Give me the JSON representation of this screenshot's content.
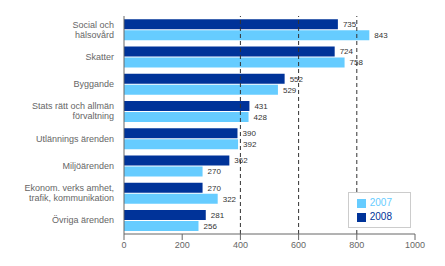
{
  "chart_data": {
    "type": "bar",
    "orientation": "horizontal",
    "categories": [
      "Övriga ärenden",
      "Ekonom. verks amhet,\ntrafik, kommunikation",
      "Miljöärenden",
      "Utlännings ärenden",
      "Stats rätt och allmän\nförvaltning",
      "Byggande",
      "Skatter",
      "Social och\nhälsovård"
    ],
    "series": [
      {
        "name": "2008",
        "color": "#003399",
        "values": [
          281,
          270,
          362,
          390,
          431,
          552,
          724,
          735
        ]
      },
      {
        "name": "2007",
        "color": "#66ccff",
        "values": [
          256,
          322,
          270,
          392,
          428,
          529,
          758,
          843
        ]
      }
    ],
    "xlim": [
      0,
      1000
    ],
    "xticks": [
      0,
      200,
      400,
      600,
      800,
      1000
    ],
    "reference_lines": [
      400,
      600,
      800
    ],
    "data_labels": true,
    "legend": "lower right",
    "grid": false
  }
}
